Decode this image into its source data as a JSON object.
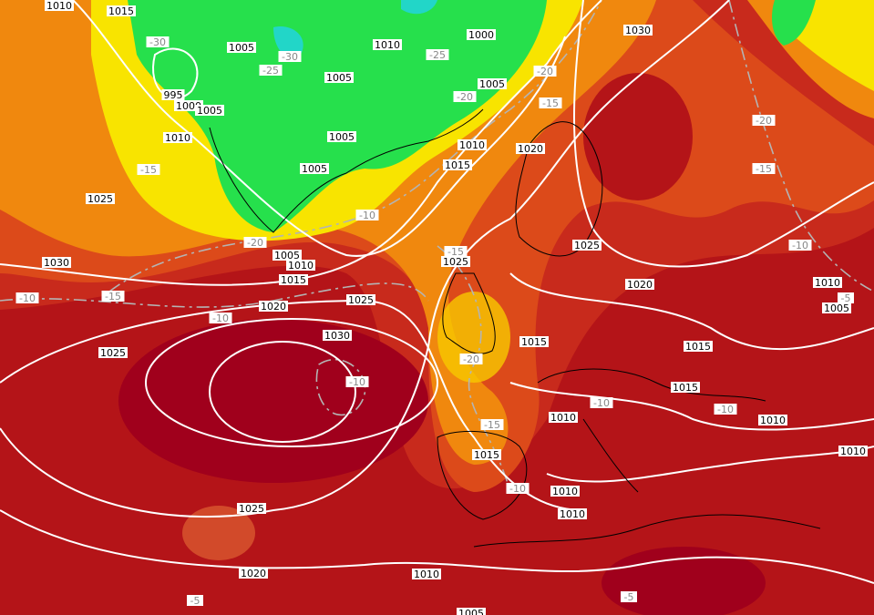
{
  "labels": [
    "1010",
    "1015",
    "-30",
    "1005",
    "-30",
    "-25",
    "1010",
    "1000",
    "-25",
    "-20",
    "1030",
    "995",
    "1000",
    "1005",
    "1005",
    "1005",
    "-20",
    "-15",
    "-20",
    "1010",
    "1005",
    "1010",
    "1020",
    "1005",
    "1015",
    "-15",
    "-15",
    "1025",
    "-10",
    "-20",
    "1005",
    "1010",
    "1025",
    "-15",
    "1025",
    "-10",
    "1030",
    "1015",
    "1020",
    "1010",
    "-10",
    "-15",
    "1020",
    "1025",
    "-5",
    "1005",
    "-10",
    "1030",
    "1015",
    "1015",
    "1025",
    "-20",
    "-10",
    "1015",
    "-10",
    "-10",
    "1010",
    "1010",
    "-15",
    "1015",
    "1010",
    "-10",
    "1010",
    "1010",
    "1025",
    "1020",
    "1010",
    "-5",
    "-5",
    "1005"
  ]
}
